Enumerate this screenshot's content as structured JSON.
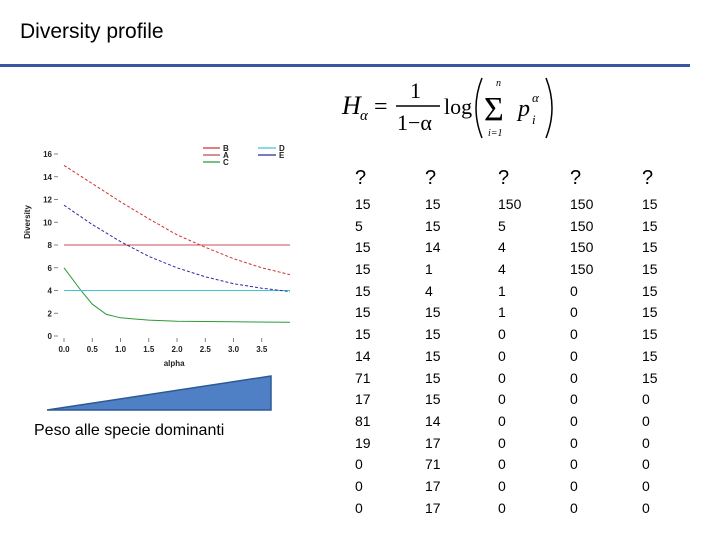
{
  "title": "Diversity profile",
  "formula_alt": "H_alpha = 1/(1-alpha) log( sum_{i=1}^{n} p_i^alpha )",
  "formula": {
    "lhs": "H",
    "lhs_sub": "α",
    "num": "1",
    "den": "1−α",
    "log": "log",
    "sum_top": "n",
    "sum_bottom": "i=1",
    "p": "p",
    "p_sub": "i",
    "p_sup": "α"
  },
  "colors": {
    "accent_rule": "#3a55a4",
    "wedge": "#4f7fc4"
  },
  "chart_data": {
    "type": "line",
    "xlabel": "alpha",
    "ylabel": "Diversity",
    "xlim": [
      0,
      4
    ],
    "ylim": [
      0,
      16
    ],
    "x_ticks": [
      "0.0",
      "0.5",
      "1.0",
      "1.5",
      "2.0",
      "2.5",
      "3.0",
      "3.5"
    ],
    "y_ticks": [
      "0",
      "2",
      "4",
      "6",
      "8",
      "10",
      "12",
      "14",
      "16"
    ],
    "legend": {
      "placement": "top",
      "left": [
        {
          "label": "B",
          "color": "#d03030"
        },
        {
          "label": "A",
          "color": "#c04a5a"
        },
        {
          "label": "C",
          "color": "#2a9a3a"
        }
      ],
      "right": [
        {
          "label": "D",
          "color": "#3fc6d8"
        },
        {
          "label": "E",
          "color": "#2a2aa0"
        }
      ]
    },
    "series": [
      {
        "name": "A",
        "color": "#c94b5b",
        "dash": "",
        "x": [
          0,
          4
        ],
        "y": [
          8,
          8
        ]
      },
      {
        "name": "B",
        "color": "#d03030",
        "dash": "3,2",
        "x": [
          0,
          0.5,
          1.0,
          1.5,
          2.0,
          2.5,
          3.0,
          3.5,
          4.0
        ],
        "y": [
          15,
          13.4,
          11.8,
          10.3,
          8.9,
          7.8,
          6.8,
          6.0,
          5.4
        ]
      },
      {
        "name": "C",
        "color": "#2a9a3a",
        "dash": "",
        "x": [
          0,
          0.3,
          0.5,
          0.75,
          1.0,
          1.5,
          2.0,
          3.0,
          4.0
        ],
        "y": [
          6.0,
          4.0,
          2.8,
          1.9,
          1.6,
          1.4,
          1.3,
          1.25,
          1.2
        ]
      },
      {
        "name": "D",
        "color": "#3fc6d8",
        "dash": "",
        "x": [
          0,
          4
        ],
        "y": [
          4,
          4
        ]
      },
      {
        "name": "E",
        "color": "#2a2aa0",
        "dash": "3,2",
        "x": [
          0,
          0.5,
          1.0,
          1.5,
          2.0,
          2.5,
          3.0,
          3.5,
          4.0
        ],
        "y": [
          11.5,
          9.8,
          8.3,
          7.0,
          6.0,
          5.2,
          4.6,
          4.2,
          3.9
        ]
      }
    ]
  },
  "wedge_caption": "Peso alle specie dominanti",
  "table": {
    "columns": [
      {
        "header": "?",
        "values": [
          "15",
          "5",
          "15",
          "15",
          "15",
          "15",
          "15",
          "14",
          "71",
          "17",
          "81",
          "19",
          "0",
          "0",
          "0"
        ]
      },
      {
        "header": "?",
        "values": [
          "15",
          "15",
          "14",
          "1",
          "4",
          "15",
          "15",
          "15",
          "15",
          "15",
          "14",
          "17",
          "71",
          "17",
          "17"
        ]
      },
      {
        "header": "?",
        "values": [
          "150",
          "5",
          "4",
          "4",
          "1",
          "1",
          "0",
          "0",
          "0",
          "0",
          "0",
          "0",
          "0",
          "0",
          "0"
        ]
      },
      {
        "header": "?",
        "values": [
          "150",
          "150",
          "150",
          "150",
          "0",
          "0",
          "0",
          "0",
          "0",
          "0",
          "0",
          "0",
          "0",
          "0",
          "0"
        ]
      },
      {
        "header": "?",
        "values": [
          "15",
          "15",
          "15",
          "15",
          "15",
          "15",
          "15",
          "15",
          "15",
          "0",
          "0",
          "0",
          "0",
          "0",
          "0"
        ]
      }
    ]
  }
}
